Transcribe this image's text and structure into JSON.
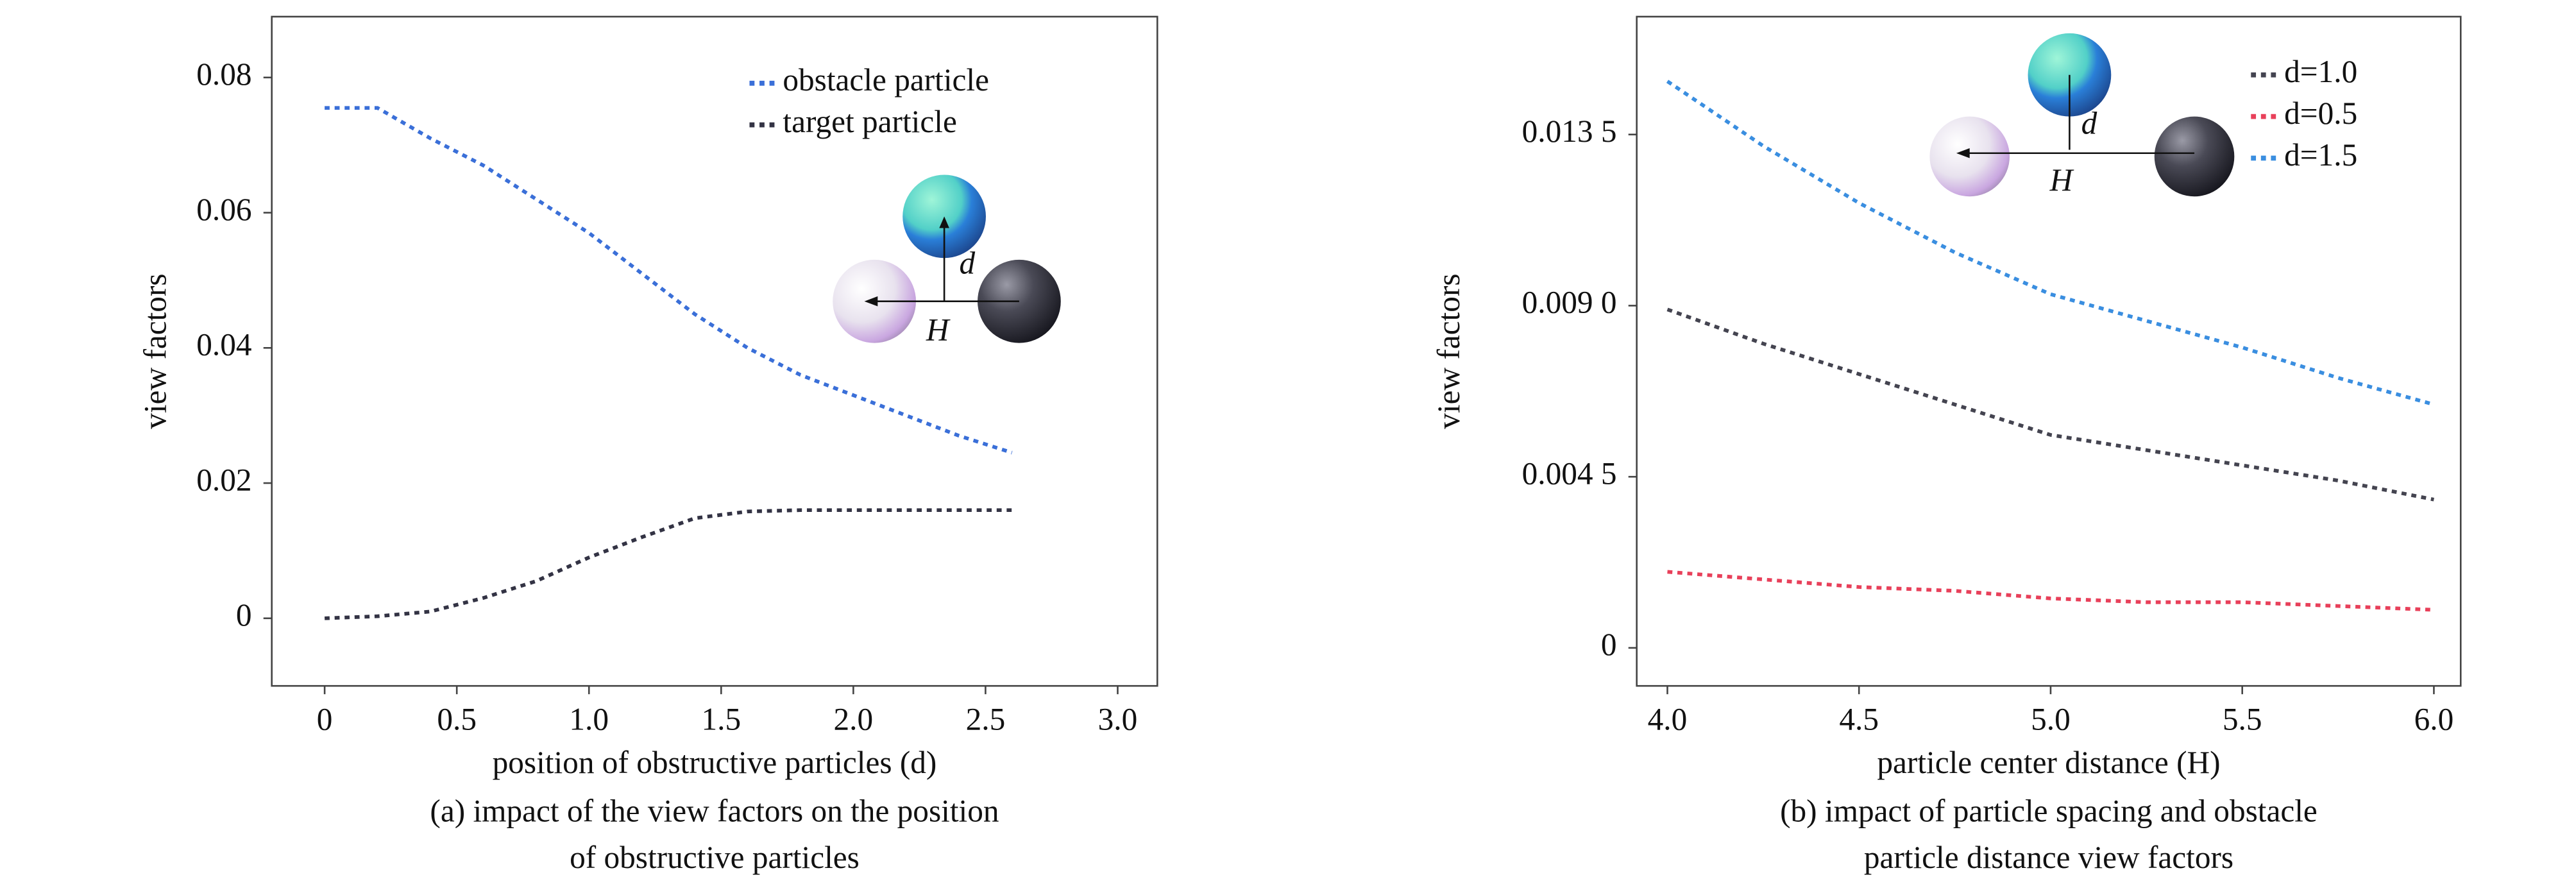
{
  "chart_data": [
    {
      "type": "line",
      "x_label": "position of obstructive particles (d)",
      "y_label": "view factors",
      "caption": [
        "(a) impact of the view factors on the position",
        "of obstructive particles"
      ],
      "annotations": [
        "d",
        "H"
      ],
      "x": [
        0,
        0.2,
        0.4,
        0.6,
        0.8,
        1.0,
        1.2,
        1.4,
        1.6,
        1.8,
        2.0,
        2.2,
        2.4,
        2.6
      ],
      "series": [
        {
          "name": "obstacle particle",
          "color": "#3a6fd8",
          "values": [
            0.0755,
            0.0755,
            0.071,
            0.067,
            0.062,
            0.057,
            0.051,
            0.045,
            0.04,
            0.036,
            0.033,
            0.03,
            0.027,
            0.0245
          ]
        },
        {
          "name": "target particle",
          "color": "#333344",
          "values": [
            0,
            0.0003,
            0.001,
            0.003,
            0.0055,
            0.009,
            0.012,
            0.0148,
            0.0158,
            0.016,
            0.016,
            0.016,
            0.016,
            0.016
          ]
        }
      ],
      "xlim": [
        -0.2,
        3.15
      ],
      "ylim": [
        -0.01,
        0.089
      ],
      "xticks": [
        0,
        0.5,
        {
          "value": 1,
          "label": "1.0"
        },
        1.5,
        {
          "value": 2,
          "label": "2.0"
        },
        2.5,
        {
          "value": 3,
          "label": "3.0"
        }
      ],
      "yticks": [
        0,
        0.02,
        0.04,
        0.06,
        0.08
      ]
    },
    {
      "type": "line",
      "x_label": "particle center distance (H)",
      "y_label": "view factors",
      "caption": [
        "(b) impact of particle spacing and obstacle",
        "particle distance view factors"
      ],
      "annotations": [
        "d",
        "H"
      ],
      "x": [
        4.0,
        4.25,
        4.5,
        4.75,
        5.0,
        5.25,
        5.5,
        5.75,
        6.0
      ],
      "series": [
        {
          "name": "d=1.0",
          "color": "#444450",
          "values": [
            0.0089,
            0.008,
            0.0072,
            0.0064,
            0.0056,
            0.0052,
            0.0048,
            0.0044,
            0.0039
          ]
        },
        {
          "name": "d=0.5",
          "color": "#e8405a",
          "values": [
            0.002,
            0.0018,
            0.0016,
            0.0015,
            0.0013,
            0.0012,
            0.0012,
            0.0011,
            0.001
          ]
        },
        {
          "name": "d=1.5",
          "color": "#3a8ee0",
          "values": [
            0.0149,
            0.0132,
            0.0117,
            0.0104,
            0.0093,
            0.0086,
            0.0079,
            0.0071,
            0.0064
          ]
        }
      ],
      "xlim": [
        3.92,
        6.07
      ],
      "ylim": [
        -0.001,
        0.0166
      ],
      "xticks": [
        {
          "value": 4,
          "label": "4.0"
        },
        4.5,
        {
          "value": 5,
          "label": "5.0"
        },
        5.5,
        {
          "value": 6,
          "label": "6.0"
        }
      ],
      "yticks": [
        0,
        {
          "value": 0.0045,
          "label": "0.004 5"
        },
        {
          "value": 0.009,
          "label": "0.009 0"
        },
        {
          "value": 0.0135,
          "label": "0.013 5"
        }
      ]
    }
  ]
}
